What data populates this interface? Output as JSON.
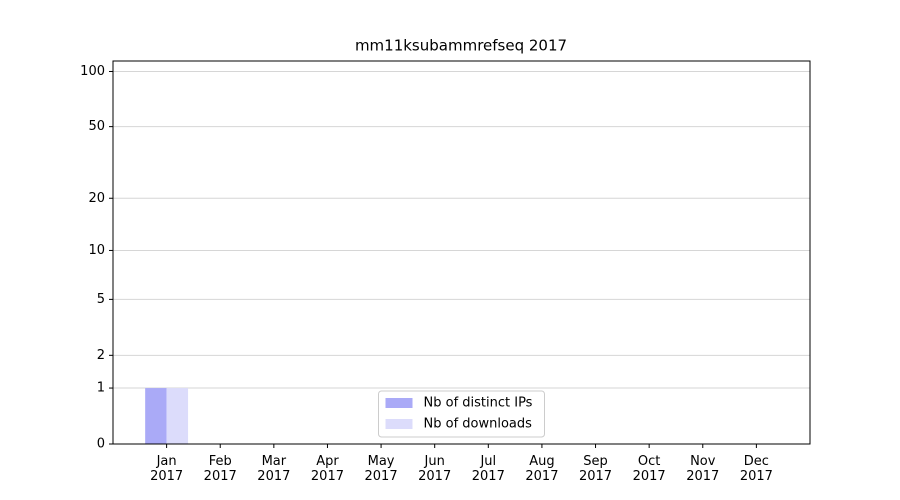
{
  "chart_data": {
    "type": "bar",
    "title": "mm11ksubammrefseq 2017",
    "categories": [
      "Jan 2017",
      "Feb 2017",
      "Mar 2017",
      "Apr 2017",
      "May 2017",
      "Jun 2017",
      "Jul 2017",
      "Aug 2017",
      "Sep 2017",
      "Oct 2017",
      "Nov 2017",
      "Dec 2017"
    ],
    "series": [
      {
        "name": "Nb of distinct IPs",
        "color": "#aaaaf7",
        "values": [
          1,
          0,
          0,
          0,
          0,
          0,
          0,
          0,
          0,
          0,
          0,
          0
        ]
      },
      {
        "name": "Nb of downloads",
        "color": "#dcdcfb",
        "values": [
          1,
          0,
          0,
          0,
          0,
          0,
          0,
          0,
          0,
          0,
          0,
          0
        ]
      }
    ],
    "ylim": [
      0,
      114
    ],
    "yticks": [
      0,
      1,
      2,
      5,
      10,
      20,
      50,
      100
    ],
    "yscale": "log1p",
    "grid": true,
    "legend": "lower center"
  }
}
